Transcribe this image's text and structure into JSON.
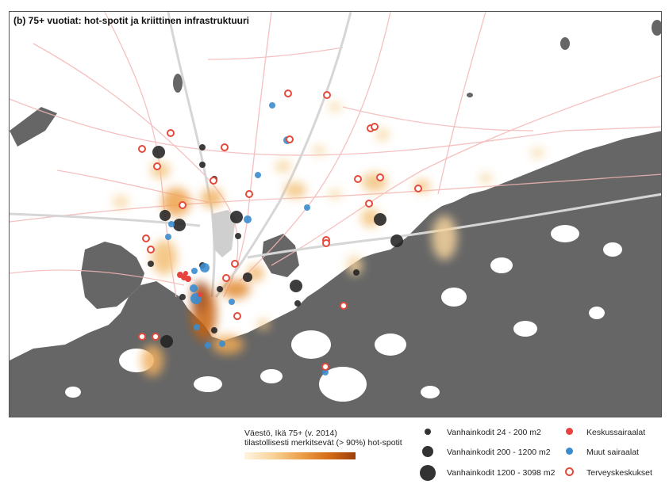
{
  "map": {
    "title": "(b) 75+ vuotiat: hot-spotit ja kriittinen infrastruktuuri",
    "colors": {
      "land": "#ffffff",
      "sea": "#666666",
      "roads": "#f4b6b6",
      "rail": "#d6d6d6",
      "heat_low": "#fff4e2",
      "heat_high": "#9c3f0a",
      "elderly_home": "#333333",
      "central_hospital": "#e8423f",
      "other_hospital": "#3a8ccf",
      "health_center": "#e34a3c"
    }
  },
  "legend": {
    "heat_title_line1": "Väestö, Ikä 75+ (v. 2014)",
    "heat_title_line2": "tilastollisesti merkitsevät (> 90%) hot-spotit",
    "homes_small": "Vanhainkodit 24 - 200 m2",
    "homes_medium": "Vanhainkodit 200 - 1200 m2",
    "homes_large": "Vanhainkodit 1200 - 3098 m2",
    "central_hospitals": "Keskussairaalat",
    "other_hospitals": "Muut sairaalat",
    "health_centers": "Terveyskeskukset"
  }
}
